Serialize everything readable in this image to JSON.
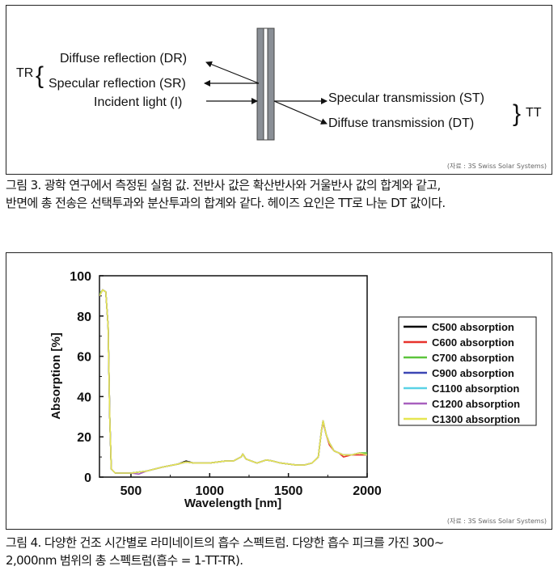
{
  "figure3": {
    "labels": {
      "dr": "Diffuse reflection (DR)",
      "sr": "Specular reflection (SR)",
      "incident": "Incident light (I)",
      "st": "Specular transmission (ST)",
      "dt": "Diffuse transmission (DT)",
      "tr": "TR",
      "tt": "TT"
    },
    "source": "(자료 : 3S Swiss Solar Systems)",
    "caption_line1": "그림 3. 광학 연구에서 측정된 실험 값. 전반사 값은 확산반사와 거울반사 값의 합계와 같고,",
    "caption_line2": "반면에 총 전송은 선택투과와 분산투과의 합계와 같다. 헤이즈 요인은 TT로 나눈 DT 값이다."
  },
  "figure4": {
    "source": "(자료 : 3S Swiss Solar Systems)",
    "caption_line1": "그림 4. 다양한 건조 시간별로 라미네이트의 흡수 스펙트럼. 다양한 흡수 피크를 가진 300~",
    "caption_line2": "2,000nm 범위의 총 스펙트럼(흡수 = 1-TT-TR)."
  },
  "chart_data": {
    "type": "line",
    "xlabel": "Wavelength [nm]",
    "ylabel": "Absorption [%]",
    "xlim": [
      300,
      2000
    ],
    "ylim": [
      0,
      100
    ],
    "xticks": [
      500,
      1000,
      1500,
      2000
    ],
    "yticks": [
      0,
      20,
      40,
      60,
      80,
      100
    ],
    "legend_position": "right",
    "grid": false,
    "series": [
      {
        "name": "C500 absorption",
        "color": "#000000",
        "points": [
          [
            300,
            90
          ],
          [
            320,
            93
          ],
          [
            340,
            92
          ],
          [
            355,
            75
          ],
          [
            365,
            30
          ],
          [
            375,
            4
          ],
          [
            400,
            2
          ],
          [
            500,
            2
          ],
          [
            600,
            3
          ],
          [
            700,
            5
          ],
          [
            800,
            6.5
          ],
          [
            850,
            8
          ],
          [
            900,
            7
          ],
          [
            1000,
            7
          ],
          [
            1100,
            8
          ],
          [
            1150,
            8
          ],
          [
            1200,
            10
          ],
          [
            1210,
            11.5
          ],
          [
            1230,
            9
          ],
          [
            1300,
            7
          ],
          [
            1360,
            8.5
          ],
          [
            1400,
            8
          ],
          [
            1450,
            7
          ],
          [
            1550,
            6
          ],
          [
            1600,
            6
          ],
          [
            1650,
            7
          ],
          [
            1690,
            10
          ],
          [
            1710,
            23
          ],
          [
            1720,
            28
          ],
          [
            1740,
            21
          ],
          [
            1760,
            17
          ],
          [
            1790,
            13
          ],
          [
            1820,
            12
          ],
          [
            1850,
            11
          ],
          [
            1900,
            11
          ],
          [
            1950,
            12
          ],
          [
            2000,
            11
          ]
        ]
      },
      {
        "name": "C600 absorption",
        "color": "#e8322c",
        "points": [
          [
            300,
            90
          ],
          [
            320,
            93
          ],
          [
            340,
            92
          ],
          [
            355,
            75
          ],
          [
            365,
            30
          ],
          [
            375,
            4
          ],
          [
            400,
            2
          ],
          [
            500,
            2
          ],
          [
            600,
            3
          ],
          [
            700,
            5
          ],
          [
            800,
            6.5
          ],
          [
            850,
            7.5
          ],
          [
            900,
            7
          ],
          [
            1000,
            7
          ],
          [
            1100,
            8
          ],
          [
            1150,
            8
          ],
          [
            1200,
            10
          ],
          [
            1210,
            11.5
          ],
          [
            1230,
            9
          ],
          [
            1300,
            7
          ],
          [
            1360,
            8.5
          ],
          [
            1400,
            8
          ],
          [
            1450,
            7
          ],
          [
            1550,
            6
          ],
          [
            1600,
            6
          ],
          [
            1650,
            7
          ],
          [
            1690,
            10
          ],
          [
            1710,
            23
          ],
          [
            1720,
            27
          ],
          [
            1740,
            21
          ],
          [
            1760,
            16
          ],
          [
            1790,
            13
          ],
          [
            1820,
            12
          ],
          [
            1850,
            10
          ],
          [
            1900,
            11
          ],
          [
            1950,
            11
          ],
          [
            2000,
            11
          ]
        ]
      },
      {
        "name": "C700 absorption",
        "color": "#5cc43c",
        "points": [
          [
            300,
            91
          ],
          [
            320,
            93
          ],
          [
            340,
            92
          ],
          [
            355,
            75
          ],
          [
            365,
            30
          ],
          [
            375,
            4
          ],
          [
            400,
            2
          ],
          [
            500,
            2
          ],
          [
            600,
            3
          ],
          [
            700,
            5
          ],
          [
            800,
            6.5
          ],
          [
            850,
            7.5
          ],
          [
            900,
            7
          ],
          [
            1000,
            7
          ],
          [
            1100,
            8
          ],
          [
            1150,
            8
          ],
          [
            1200,
            10
          ],
          [
            1210,
            11.5
          ],
          [
            1230,
            9
          ],
          [
            1300,
            7
          ],
          [
            1360,
            8.5
          ],
          [
            1400,
            8
          ],
          [
            1450,
            7
          ],
          [
            1550,
            6
          ],
          [
            1600,
            6
          ],
          [
            1650,
            7
          ],
          [
            1690,
            10
          ],
          [
            1710,
            23
          ],
          [
            1720,
            28
          ],
          [
            1740,
            21
          ],
          [
            1760,
            17
          ],
          [
            1790,
            13
          ],
          [
            1820,
            12
          ],
          [
            1850,
            11
          ],
          [
            1900,
            11
          ],
          [
            1950,
            12
          ],
          [
            2000,
            12
          ]
        ]
      },
      {
        "name": "C900 absorption",
        "color": "#3c46b4",
        "points": [
          [
            300,
            90
          ],
          [
            320,
            93
          ],
          [
            340,
            92
          ],
          [
            355,
            75
          ],
          [
            365,
            30
          ],
          [
            375,
            4
          ],
          [
            400,
            2
          ],
          [
            500,
            2
          ],
          [
            600,
            3
          ],
          [
            700,
            5
          ],
          [
            800,
            6.5
          ],
          [
            850,
            7.5
          ],
          [
            900,
            7
          ],
          [
            1000,
            7
          ],
          [
            1100,
            8
          ],
          [
            1150,
            8
          ],
          [
            1200,
            10
          ],
          [
            1210,
            11.5
          ],
          [
            1230,
            9
          ],
          [
            1300,
            7
          ],
          [
            1360,
            8.5
          ],
          [
            1400,
            8
          ],
          [
            1450,
            7
          ],
          [
            1550,
            6
          ],
          [
            1600,
            6
          ],
          [
            1650,
            7
          ],
          [
            1690,
            10
          ],
          [
            1710,
            23
          ],
          [
            1720,
            28
          ],
          [
            1740,
            21
          ],
          [
            1760,
            17
          ],
          [
            1790,
            13
          ],
          [
            1820,
            12
          ],
          [
            1850,
            11
          ],
          [
            1900,
            11
          ],
          [
            1950,
            12
          ],
          [
            2000,
            11
          ]
        ]
      },
      {
        "name": "C1100 absorption",
        "color": "#5ad2e6",
        "points": [
          [
            300,
            90
          ],
          [
            320,
            93
          ],
          [
            340,
            92
          ],
          [
            355,
            75
          ],
          [
            365,
            30
          ],
          [
            375,
            4
          ],
          [
            400,
            2
          ],
          [
            500,
            2
          ],
          [
            600,
            3
          ],
          [
            700,
            5
          ],
          [
            800,
            6.5
          ],
          [
            850,
            7.5
          ],
          [
            900,
            7
          ],
          [
            1000,
            7
          ],
          [
            1100,
            8
          ],
          [
            1150,
            8
          ],
          [
            1200,
            10
          ],
          [
            1210,
            11.5
          ],
          [
            1230,
            9
          ],
          [
            1300,
            7
          ],
          [
            1360,
            8.5
          ],
          [
            1400,
            8
          ],
          [
            1450,
            7
          ],
          [
            1550,
            6
          ],
          [
            1600,
            6
          ],
          [
            1650,
            7
          ],
          [
            1690,
            10
          ],
          [
            1710,
            23
          ],
          [
            1720,
            28
          ],
          [
            1740,
            21
          ],
          [
            1760,
            17
          ],
          [
            1790,
            13
          ],
          [
            1820,
            12
          ],
          [
            1850,
            11
          ],
          [
            1900,
            11
          ],
          [
            1950,
            12
          ],
          [
            2000,
            11
          ]
        ]
      },
      {
        "name": "C1200 absorption",
        "color": "#a860be",
        "points": [
          [
            300,
            90
          ],
          [
            320,
            93
          ],
          [
            340,
            92
          ],
          [
            355,
            75
          ],
          [
            365,
            30
          ],
          [
            375,
            4
          ],
          [
            400,
            2
          ],
          [
            500,
            2
          ],
          [
            550,
            1.5
          ],
          [
            600,
            3
          ],
          [
            700,
            5
          ],
          [
            800,
            6.5
          ],
          [
            850,
            7.5
          ],
          [
            900,
            7
          ],
          [
            1000,
            7
          ],
          [
            1100,
            8
          ],
          [
            1150,
            8
          ],
          [
            1200,
            10
          ],
          [
            1210,
            11.5
          ],
          [
            1230,
            9
          ],
          [
            1300,
            7
          ],
          [
            1360,
            8.5
          ],
          [
            1400,
            8
          ],
          [
            1450,
            7
          ],
          [
            1550,
            6
          ],
          [
            1600,
            6
          ],
          [
            1650,
            7
          ],
          [
            1690,
            10
          ],
          [
            1710,
            23
          ],
          [
            1720,
            28
          ],
          [
            1740,
            21
          ],
          [
            1760,
            17
          ],
          [
            1790,
            13
          ],
          [
            1820,
            12
          ],
          [
            1850,
            11
          ],
          [
            1900,
            11
          ],
          [
            1950,
            12
          ],
          [
            2000,
            11
          ]
        ]
      },
      {
        "name": "C1300 absorption",
        "color": "#e6e650",
        "points": [
          [
            300,
            90
          ],
          [
            320,
            93
          ],
          [
            340,
            92
          ],
          [
            355,
            75
          ],
          [
            365,
            30
          ],
          [
            375,
            4
          ],
          [
            400,
            2
          ],
          [
            500,
            2
          ],
          [
            600,
            3
          ],
          [
            700,
            5
          ],
          [
            800,
            6.5
          ],
          [
            850,
            7.5
          ],
          [
            900,
            7
          ],
          [
            1000,
            7
          ],
          [
            1100,
            8
          ],
          [
            1150,
            8
          ],
          [
            1200,
            10
          ],
          [
            1210,
            11.5
          ],
          [
            1230,
            9
          ],
          [
            1300,
            7
          ],
          [
            1360,
            8.5
          ],
          [
            1400,
            8
          ],
          [
            1450,
            7
          ],
          [
            1550,
            6
          ],
          [
            1600,
            6
          ],
          [
            1650,
            7
          ],
          [
            1690,
            10
          ],
          [
            1710,
            23
          ],
          [
            1720,
            28
          ],
          [
            1740,
            21
          ],
          [
            1760,
            17
          ],
          [
            1790,
            13
          ],
          [
            1820,
            12
          ],
          [
            1850,
            11
          ],
          [
            1900,
            11
          ],
          [
            1950,
            12
          ],
          [
            2000,
            11
          ]
        ]
      }
    ]
  }
}
